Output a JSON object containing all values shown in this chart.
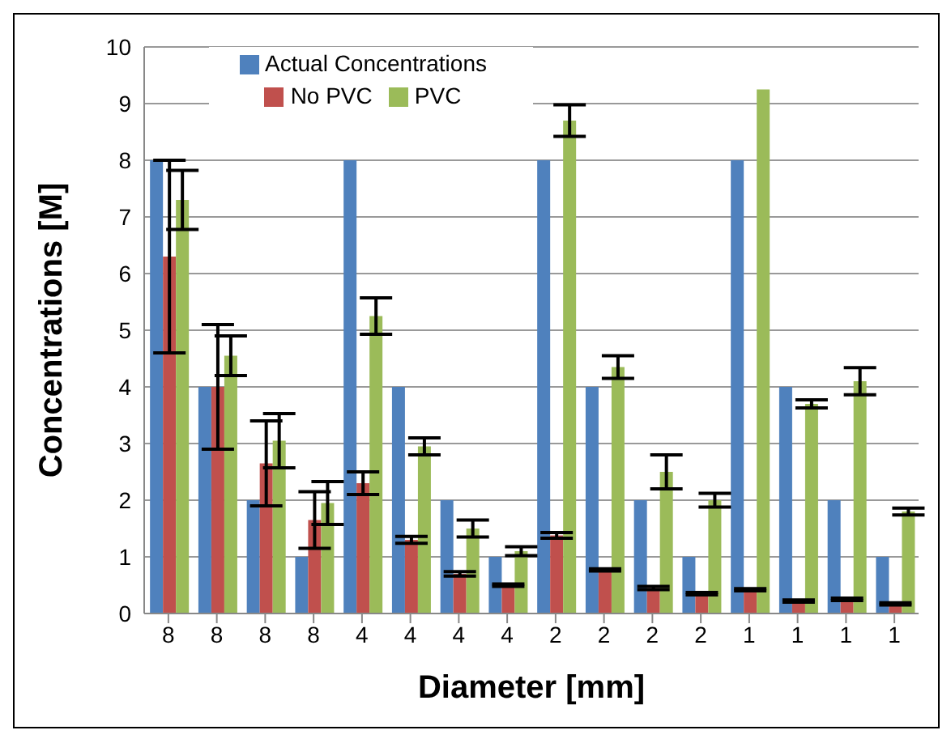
{
  "chart_data": {
    "type": "bar",
    "xlabel": "Diameter [mm]",
    "ylabel": "Concentrations [M]",
    "categories": [
      "8",
      "8",
      "8",
      "8",
      "4",
      "4",
      "4",
      "4",
      "2",
      "2",
      "2",
      "2",
      "1",
      "1",
      "1",
      "1"
    ],
    "series": [
      {
        "name": "Actual Concentrations",
        "color": "#4f81bd",
        "values": [
          8,
          4,
          2,
          1,
          8,
          4,
          2,
          1,
          8,
          4,
          2,
          1,
          8,
          4,
          2,
          1
        ],
        "errors": [
          0,
          0,
          0,
          0,
          0,
          0,
          0,
          0,
          0,
          0,
          0,
          0,
          0,
          0,
          0,
          0
        ]
      },
      {
        "name": "No PVC",
        "color": "#c0504d",
        "values": [
          6.3,
          4.0,
          2.65,
          1.65,
          2.3,
          1.3,
          0.7,
          0.5,
          1.38,
          0.77,
          0.45,
          0.35,
          0.42,
          0.22,
          0.25,
          0.17
        ],
        "errors": [
          1.7,
          1.1,
          0.75,
          0.5,
          0.2,
          0.06,
          0.04,
          0.02,
          0.05,
          0.02,
          0.03,
          0.02,
          0.02,
          0.02,
          0.02,
          0.02
        ]
      },
      {
        "name": "PVC",
        "color": "#9bbb59",
        "values": [
          7.3,
          4.55,
          3.05,
          1.95,
          5.25,
          2.95,
          1.5,
          1.1,
          8.7,
          4.35,
          2.5,
          2.0,
          9.25,
          3.7,
          4.1,
          1.8
        ],
        "errors": [
          0.52,
          0.35,
          0.48,
          0.38,
          0.32,
          0.15,
          0.15,
          0.08,
          0.28,
          0.2,
          0.3,
          0.12,
          0,
          0.07,
          0.24,
          0.06
        ]
      }
    ],
    "ylim": [
      0,
      10
    ],
    "yticks": [
      0,
      1,
      2,
      3,
      4,
      5,
      6,
      7,
      8,
      9,
      10
    ],
    "grid": "y",
    "legend": "top left"
  }
}
